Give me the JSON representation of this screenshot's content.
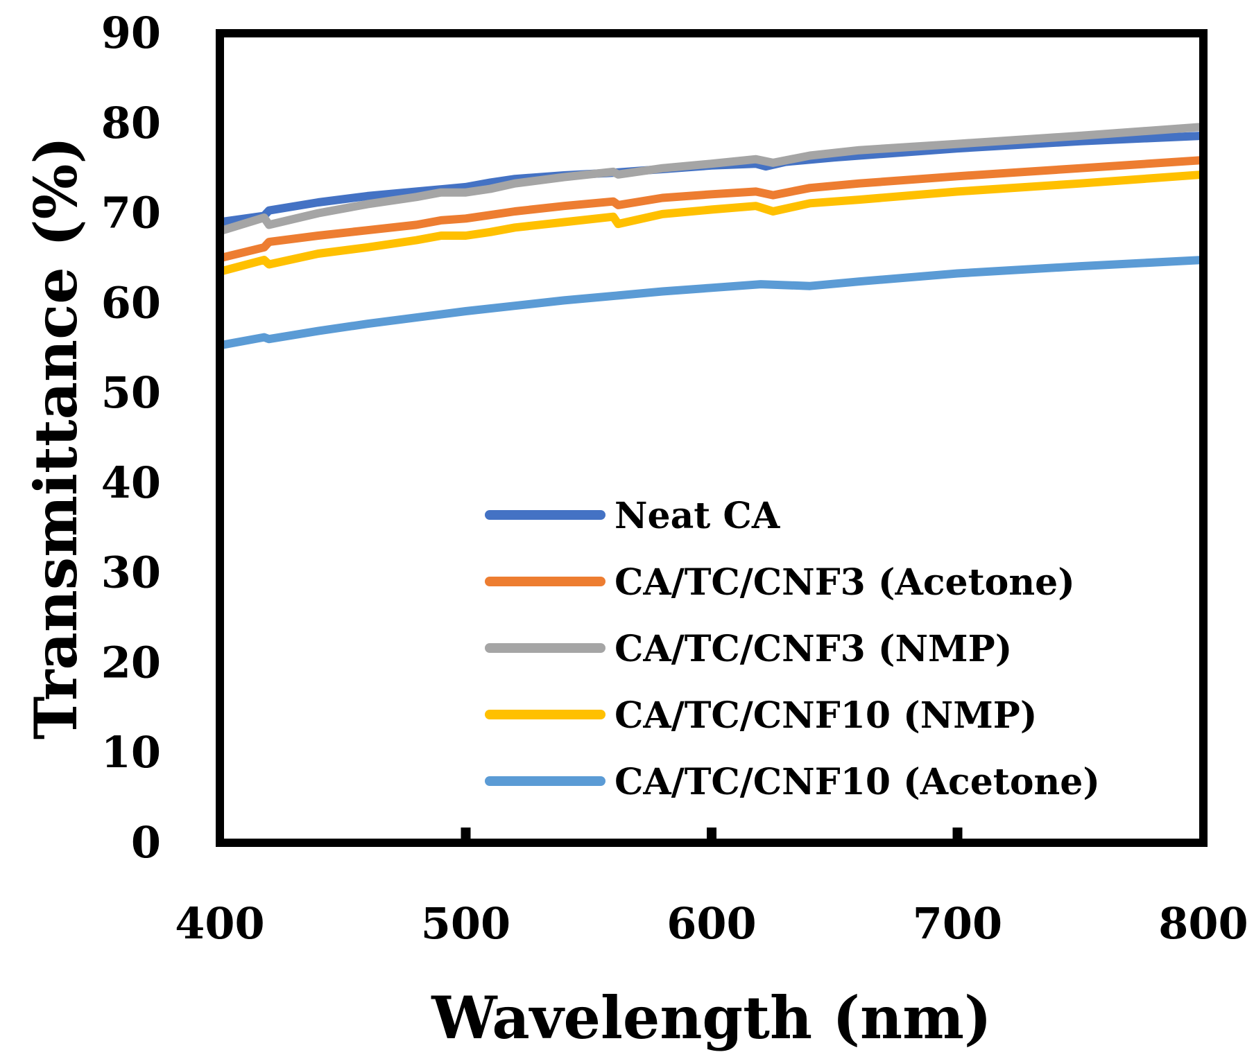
{
  "chart_data": {
    "type": "line",
    "title": "",
    "xlabel": "Wavelength (nm)",
    "ylabel": "Transmittance (%)",
    "xlim": [
      400,
      800
    ],
    "ylim": [
      0,
      90
    ],
    "xticks": [
      400,
      500,
      600,
      700,
      800
    ],
    "yticks": [
      0,
      10,
      20,
      30,
      40,
      50,
      60,
      70,
      80,
      90
    ],
    "legend_position": "bottom-right inside plot",
    "series": [
      {
        "name": "Neat CA",
        "color": "#4472C4",
        "x": [
          400,
          418,
          420,
          440,
          460,
          480,
          500,
          510,
          520,
          540,
          560,
          580,
          600,
          618,
          622,
          630,
          650,
          700,
          750,
          800
        ],
        "y": [
          69.0,
          69.7,
          70.3,
          71.2,
          71.9,
          72.4,
          72.9,
          73.4,
          73.8,
          74.2,
          74.5,
          74.9,
          75.3,
          75.5,
          75.2,
          75.7,
          76.2,
          77.2,
          78.0,
          78.6
        ]
      },
      {
        "name": "CA/TC/CNF3 (Acetone)",
        "color": "#ED7D31",
        "x": [
          400,
          418,
          420,
          440,
          460,
          480,
          490,
          500,
          510,
          520,
          540,
          560,
          562,
          580,
          600,
          618,
          625,
          640,
          660,
          700,
          750,
          800
        ],
        "y": [
          65.0,
          66.2,
          66.8,
          67.5,
          68.1,
          68.7,
          69.2,
          69.4,
          69.8,
          70.2,
          70.8,
          71.3,
          70.9,
          71.7,
          72.1,
          72.4,
          72.0,
          72.8,
          73.3,
          74.1,
          75.0,
          75.9
        ]
      },
      {
        "name": "CA/TC/CNF3 (NMP)",
        "color": "#A5A5A5",
        "x": [
          400,
          418,
          420,
          440,
          460,
          480,
          490,
          500,
          510,
          520,
          540,
          560,
          562,
          580,
          600,
          618,
          625,
          640,
          660,
          700,
          750,
          800
        ],
        "y": [
          68.0,
          69.5,
          68.7,
          70.0,
          71.0,
          71.8,
          72.3,
          72.3,
          72.7,
          73.3,
          74.0,
          74.6,
          74.3,
          75.0,
          75.5,
          76.0,
          75.6,
          76.4,
          77.0,
          77.7,
          78.6,
          79.6
        ]
      },
      {
        "name": "CA/TC/CNF10 (NMP)",
        "color": "#FFC000",
        "x": [
          400,
          418,
          420,
          440,
          460,
          480,
          490,
          500,
          510,
          520,
          540,
          560,
          562,
          580,
          600,
          618,
          625,
          640,
          660,
          700,
          750,
          800
        ],
        "y": [
          63.5,
          64.8,
          64.3,
          65.5,
          66.2,
          67.0,
          67.5,
          67.5,
          67.9,
          68.4,
          69.0,
          69.6,
          68.8,
          69.9,
          70.4,
          70.8,
          70.2,
          71.1,
          71.5,
          72.4,
          73.3,
          74.3
        ]
      },
      {
        "name": "CA/TC/CNF10 (Acetone)",
        "color": "#5B9BD5",
        "x": [
          400,
          418,
          420,
          440,
          460,
          480,
          500,
          520,
          540,
          560,
          580,
          600,
          620,
          640,
          660,
          700,
          750,
          800
        ],
        "y": [
          55.3,
          56.2,
          56.0,
          56.9,
          57.7,
          58.4,
          59.1,
          59.7,
          60.3,
          60.8,
          61.3,
          61.7,
          62.1,
          61.9,
          62.4,
          63.3,
          64.1,
          64.8
        ]
      }
    ]
  }
}
